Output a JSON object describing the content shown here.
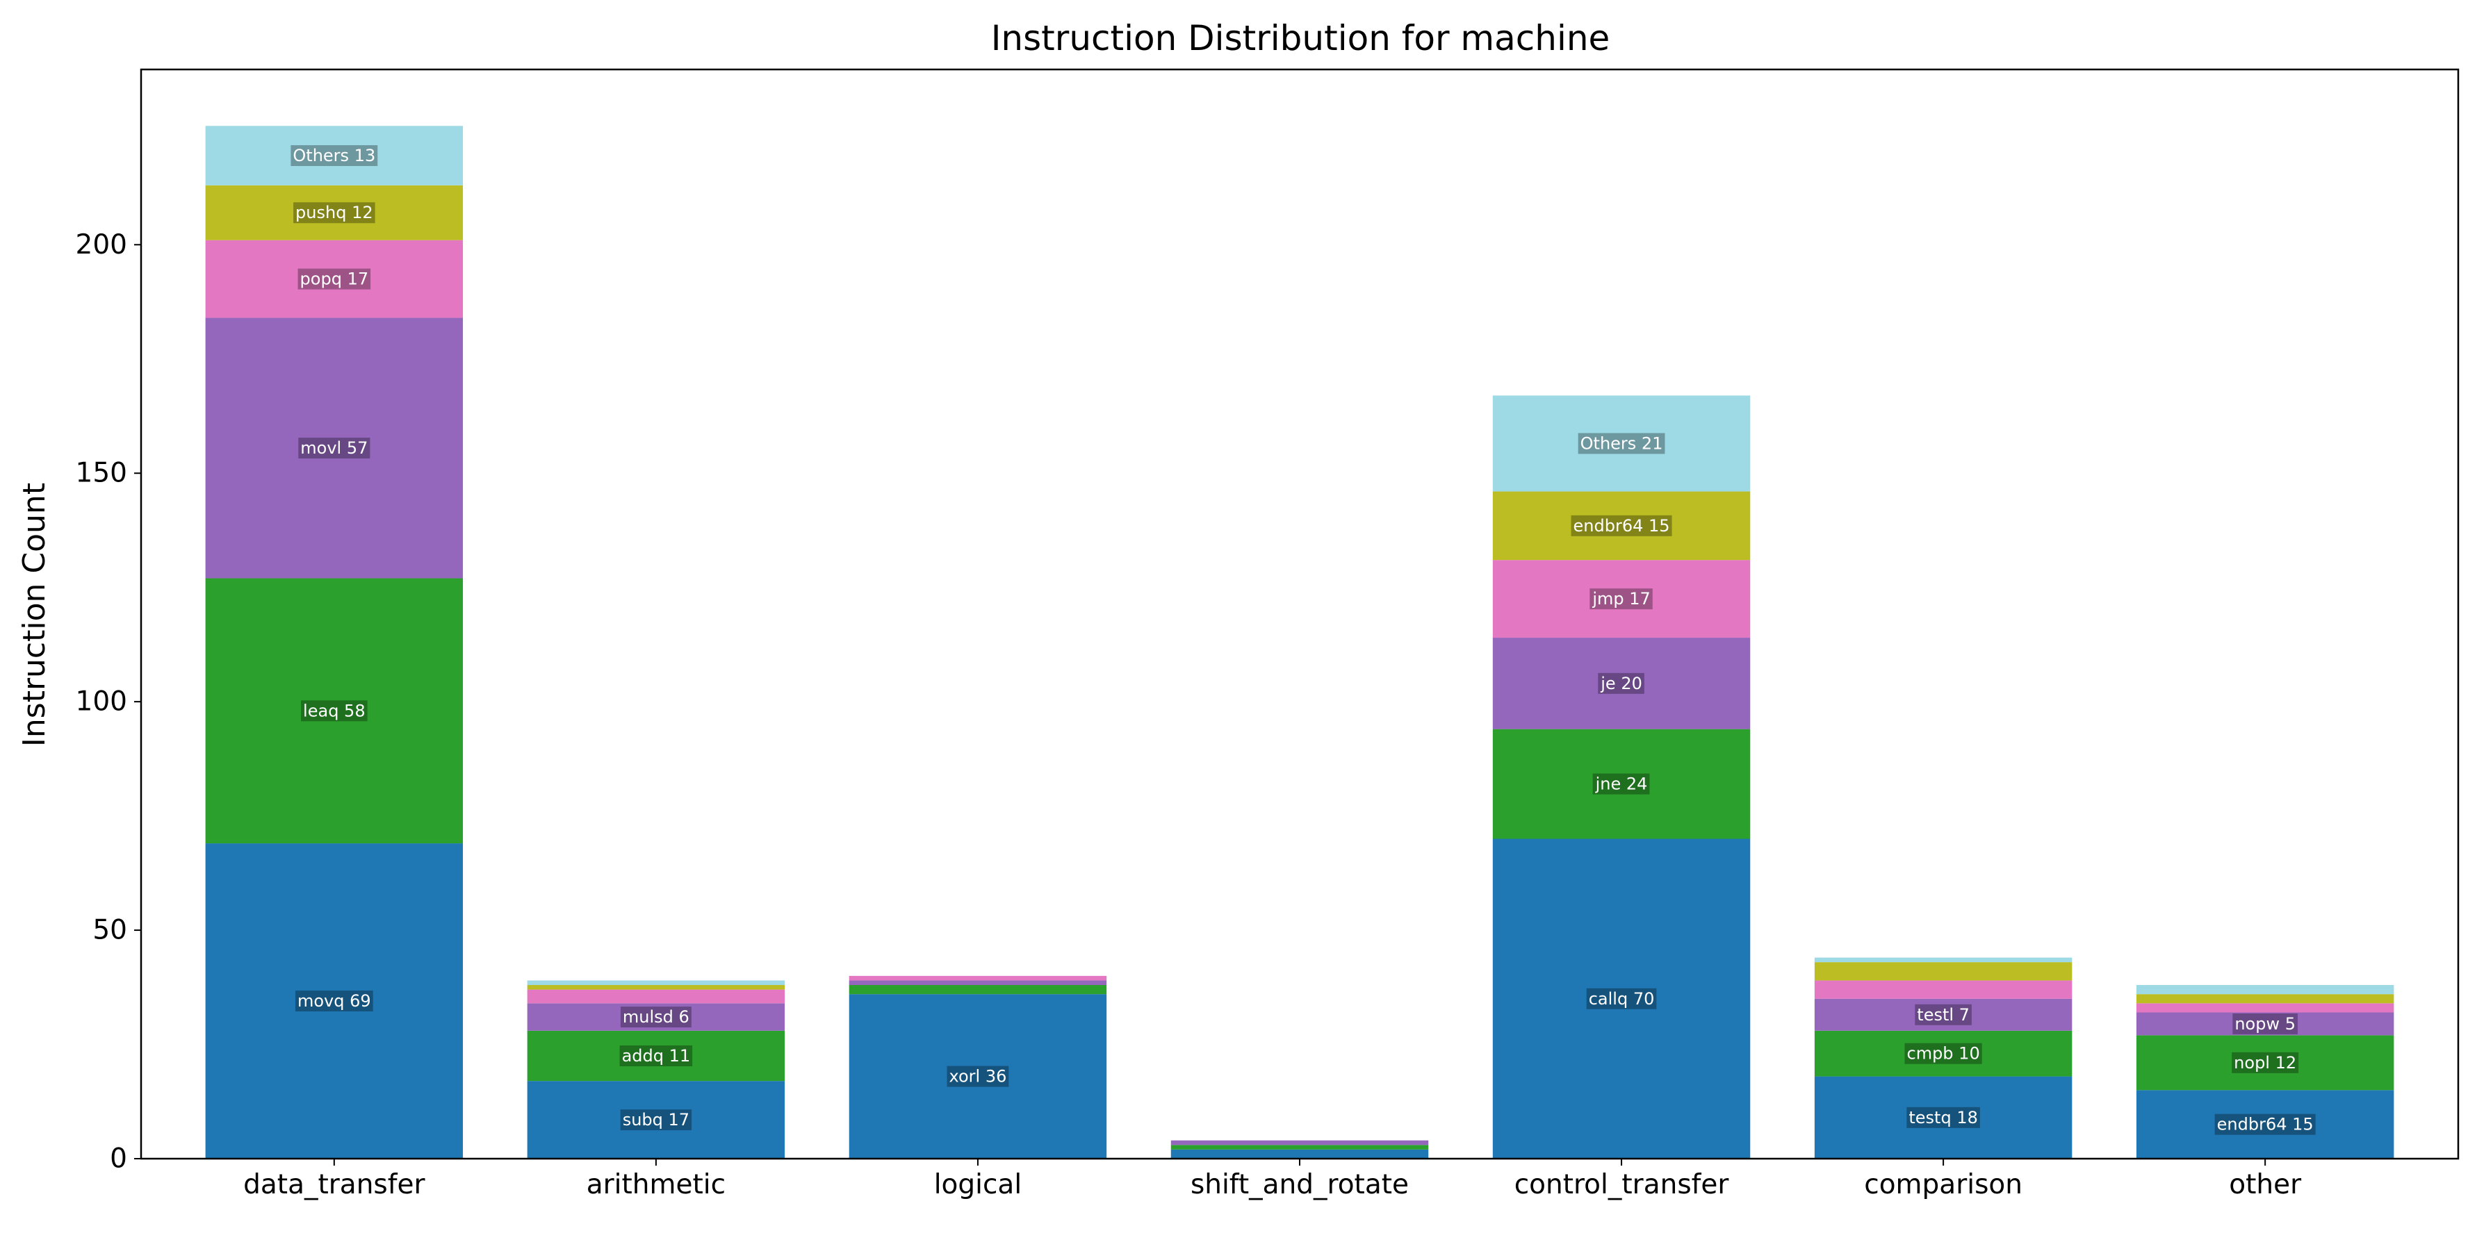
{
  "chart_data": {
    "type": "bar",
    "stacked": true,
    "title": "Instruction Distribution for machine",
    "xlabel": "",
    "ylabel": "Instruction Count",
    "ylim": [
      0,
      238.35
    ],
    "yticks": [
      0,
      50,
      100,
      150,
      200
    ],
    "grid": false,
    "legend": "none",
    "segment_colors": [
      "#1f77b4",
      "#2ca02c",
      "#9467bd",
      "#e377c2",
      "#bcbd22",
      "#9edae5"
    ],
    "categories": [
      {
        "name": "data_transfer",
        "segments": [
          {
            "label": "movq",
            "value": 69
          },
          {
            "label": "leaq",
            "value": 58
          },
          {
            "label": "movl",
            "value": 57
          },
          {
            "label": "popq",
            "value": 17
          },
          {
            "label": "pushq",
            "value": 12
          },
          {
            "label": "Others",
            "value": 13
          }
        ]
      },
      {
        "name": "arithmetic",
        "segments": [
          {
            "label": "subq",
            "value": 17
          },
          {
            "label": "addq",
            "value": 11
          },
          {
            "label": "mulsd",
            "value": 6
          },
          {
            "label": "",
            "value": 3
          },
          {
            "label": "",
            "value": 1
          },
          {
            "label": "",
            "value": 1
          }
        ]
      },
      {
        "name": "logical",
        "segments": [
          {
            "label": "xorl",
            "value": 36
          },
          {
            "label": "",
            "value": 2
          },
          {
            "label": "",
            "value": 1
          },
          {
            "label": "",
            "value": 1
          }
        ]
      },
      {
        "name": "shift_and_rotate",
        "segments": [
          {
            "label": "",
            "value": 2
          },
          {
            "label": "",
            "value": 1
          },
          {
            "label": "",
            "value": 1
          }
        ]
      },
      {
        "name": "control_transfer",
        "segments": [
          {
            "label": "callq",
            "value": 70
          },
          {
            "label": "jne",
            "value": 24
          },
          {
            "label": "je",
            "value": 20
          },
          {
            "label": "jmp",
            "value": 17
          },
          {
            "label": "endbr64",
            "value": 15
          },
          {
            "label": "Others",
            "value": 21
          }
        ]
      },
      {
        "name": "comparison",
        "segments": [
          {
            "label": "testq",
            "value": 18
          },
          {
            "label": "cmpb",
            "value": 10
          },
          {
            "label": "testl",
            "value": 7
          },
          {
            "label": "",
            "value": 4
          },
          {
            "label": "",
            "value": 4
          },
          {
            "label": "",
            "value": 1
          }
        ]
      },
      {
        "name": "other",
        "segments": [
          {
            "label": "endbr64",
            "value": 15
          },
          {
            "label": "nopl",
            "value": 12
          },
          {
            "label": "nopw",
            "value": 5
          },
          {
            "label": "",
            "value": 2
          },
          {
            "label": "",
            "value": 2
          },
          {
            "label": "",
            "value": 2
          }
        ]
      }
    ]
  }
}
